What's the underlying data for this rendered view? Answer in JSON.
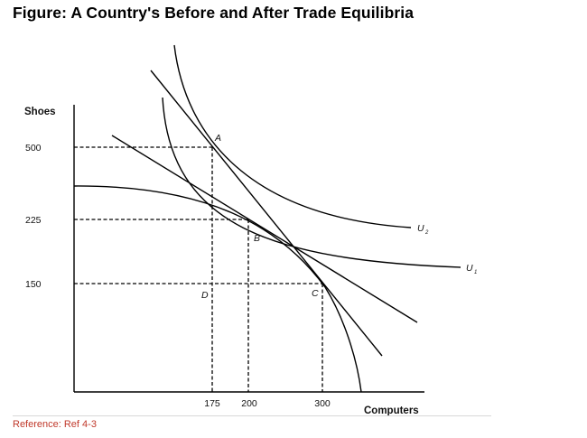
{
  "title": "Figure: A Country's Before and After Trade Equilibria",
  "reference": "Reference: Ref 4-3",
  "axes": {
    "y_title": "Shoes",
    "x_title": "Computers",
    "y_ticks": [
      "500",
      "225",
      "150"
    ],
    "x_ticks": [
      "175",
      "200",
      "300"
    ]
  },
  "points": {
    "A": "A",
    "B": "B",
    "C": "C",
    "D": "D"
  },
  "curves": {
    "u2": {
      "base": "U",
      "sub": "2"
    },
    "u1": {
      "base": "U",
      "sub": "1"
    }
  }
}
